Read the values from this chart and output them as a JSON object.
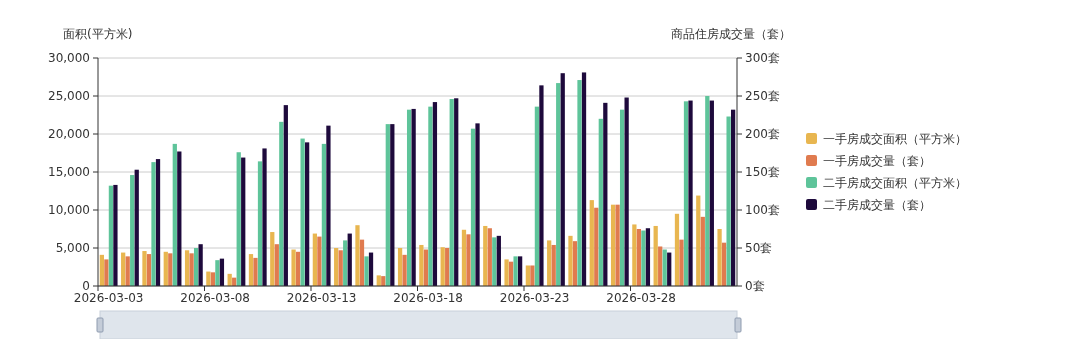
{
  "chart_data": {
    "type": "bar",
    "categories": [
      "2026-03-03",
      null,
      null,
      null,
      null,
      "2026-03-08",
      null,
      null,
      null,
      null,
      "2026-03-13",
      null,
      null,
      null,
      null,
      "2026-03-18",
      null,
      null,
      null,
      null,
      "2026-03-23",
      null,
      null,
      null,
      null,
      "2026-03-28",
      null,
      null,
      null,
      null
    ],
    "series": [
      {
        "name": "一手房成交面积（平方米）",
        "color": "#e8b650",
        "values": [
          4100,
          4400,
          4600,
          4500,
          4700,
          1900,
          1600,
          4200,
          7100,
          4800,
          6900,
          5000,
          8000,
          1400,
          5000,
          5400,
          5100,
          7400,
          7900,
          3500,
          2700,
          6000,
          6600,
          11300,
          10700,
          8100,
          7900,
          9500,
          11900,
          7500
        ]
      },
      {
        "name": "一手房成交量（套）",
        "color": "#e07b4f",
        "axis": "y2",
        "values": [
          35,
          39,
          42,
          43,
          43,
          18,
          11,
          37,
          55,
          45,
          65,
          47,
          61,
          13,
          41,
          48,
          50,
          68,
          76,
          32,
          27,
          54,
          59,
          103,
          107,
          75,
          52,
          61,
          91,
          57
        ]
      },
      {
        "name": "二手房成交面积（平方米）",
        "color": "#5ec49a",
        "values": [
          13200,
          14600,
          16300,
          18700,
          5000,
          3400,
          17600,
          16400,
          21600,
          19400,
          18700,
          6000,
          3900,
          21300,
          23200,
          23600,
          24600,
          20700,
          6400,
          3900,
          23600,
          26700,
          27100,
          22000,
          23200,
          7300,
          4800,
          24300,
          25000,
          22300
        ]
      },
      {
        "name": "二手房成交量（套）",
        "color": "#1e0a3c",
        "axis": "y2",
        "values": [
          133,
          153,
          167,
          177,
          55,
          36,
          169,
          181,
          238,
          189,
          211,
          69,
          44,
          213,
          233,
          242,
          247,
          214,
          66,
          39,
          264,
          280,
          281,
          241,
          248,
          76,
          44,
          244,
          244,
          232
        ]
      }
    ],
    "ylabel": "面积(平方米)",
    "y2label": "商品住房成交量（套）",
    "ylim": [
      0,
      30000
    ],
    "yticks": [
      {
        "value": 0,
        "label": "0"
      },
      {
        "value": 5000,
        "label": "5,000"
      },
      {
        "value": 10000,
        "label": "10,000"
      },
      {
        "value": 15000,
        "label": "15,000"
      },
      {
        "value": 20000,
        "label": "20,000"
      },
      {
        "value": 25000,
        "label": "25,000"
      },
      {
        "value": 30000,
        "label": "30,000"
      }
    ],
    "y2lim": [
      0,
      300
    ],
    "y2ticks": [
      {
        "value": 0,
        "label": "0套"
      },
      {
        "value": 50,
        "label": "50套"
      },
      {
        "value": 100,
        "label": "100套"
      },
      {
        "value": 150,
        "label": "150套"
      },
      {
        "value": 200,
        "label": "200套"
      },
      {
        "value": 250,
        "label": "250套"
      },
      {
        "value": 300,
        "label": "300套"
      }
    ],
    "grid": "y",
    "legend": "right"
  }
}
